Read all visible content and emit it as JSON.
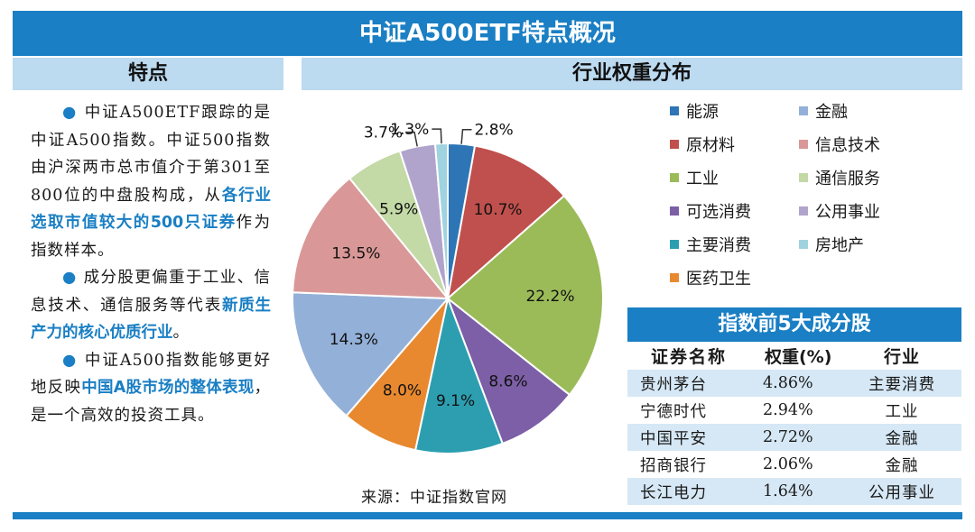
{
  "title": "中证A500ETF特点概况",
  "left": {
    "header": "特点",
    "paragraphs": [
      [
        {
          "t": "中证A500ETF跟踪的是中证A500指数。中证500指数由沪深两市总市值介于第301至800位的中盘股构成，从",
          "hl": false
        },
        {
          "t": "各行业选取市值较大的500只证券",
          "hl": true
        },
        {
          "t": "作为指数样本。",
          "hl": false
        }
      ],
      [
        {
          "t": "成分股更偏重于工业、信息技术、通信服务等代表",
          "hl": false
        },
        {
          "t": "新质生产力的核心优质行业",
          "hl": true
        },
        {
          "t": "。",
          "hl": false
        }
      ],
      [
        {
          "t": "中证A500指数能够更好地反映",
          "hl": false
        },
        {
          "t": "中国A股市场的整体表现",
          "hl": true
        },
        {
          "t": "，是一个高效的投资工具。",
          "hl": false
        }
      ]
    ]
  },
  "right": {
    "header": "行业权重分布",
    "source": "来源：中证指数官网"
  },
  "chart_data": {
    "type": "pie",
    "title": "行业权重分布",
    "start_angle_deg": 0,
    "direction": "clockwise",
    "legend_position": "right",
    "slices": [
      {
        "label": "能源",
        "value": 2.8,
        "display": "2.8%",
        "color": "#2e75b6"
      },
      {
        "label": "原材料",
        "value": 10.7,
        "display": "10.7%",
        "color": "#c0504d"
      },
      {
        "label": "工业",
        "value": 22.2,
        "display": "22.2%",
        "color": "#9bbb59"
      },
      {
        "label": "可选消费",
        "value": 8.6,
        "display": "8.6%",
        "color": "#7c5fa6"
      },
      {
        "label": "主要消费",
        "value": 9.1,
        "display": "9.1%",
        "color": "#2c9eb0"
      },
      {
        "label": "医药卫生",
        "value": 8.0,
        "display": "8.0%",
        "color": "#e8892f"
      },
      {
        "label": "金融",
        "value": 14.3,
        "display": "14.3%",
        "color": "#93b0d8"
      },
      {
        "label": "信息技术",
        "value": 13.5,
        "display": "13.5%",
        "color": "#d99897"
      },
      {
        "label": "通信服务",
        "value": 5.9,
        "display": "5.9%",
        "color": "#c3d9a6"
      },
      {
        "label": "公用事业",
        "value": 3.7,
        "display": "3.7%",
        "color": "#b1a4cc"
      },
      {
        "label": "房地产",
        "value": 1.3,
        "display": "1.3%",
        "color": "#9fd3e0"
      }
    ],
    "legend_order": [
      "能源",
      "金融",
      "原材料",
      "信息技术",
      "工业",
      "通信服务",
      "可选消费",
      "公用事业",
      "主要消费",
      "房地产",
      "医药卫生"
    ]
  },
  "top5": {
    "title": "指数前5大成分股",
    "columns": [
      "证券名称",
      "权重(%)",
      "行业"
    ],
    "rows": [
      [
        "贵州茅台",
        "4.86%",
        "主要消费"
      ],
      [
        "宁德时代",
        "2.94%",
        "工业"
      ],
      [
        "中国平安",
        "2.72%",
        "金融"
      ],
      [
        "招商银行",
        "2.06%",
        "金融"
      ],
      [
        "长江电力",
        "1.64%",
        "公用事业"
      ]
    ]
  }
}
